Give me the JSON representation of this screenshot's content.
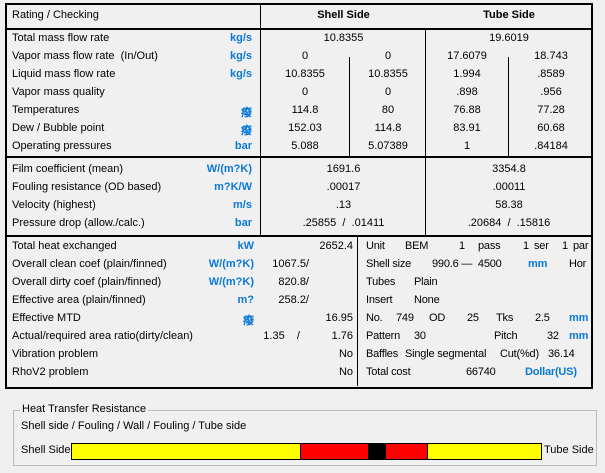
{
  "header": {
    "title": "Rating / Checking",
    "shell": "Shell Side",
    "tube": "Tube Side"
  },
  "rows1": [
    {
      "label": "Total mass flow rate",
      "unit": "kg/s",
      "shell": "10.8355",
      "tube": "19.6019"
    },
    {
      "label": "Vapor mass flow rate  (In/Out)",
      "unit": "kg/s",
      "s1": "0",
      "s2": "0",
      "t1": "17.6079",
      "t2": "18.743"
    },
    {
      "label": "Liquid mass flow rate",
      "unit": "kg/s",
      "s1": "10.8355",
      "s2": "10.8355",
      "t1": "1.994",
      "t2": ".8589"
    },
    {
      "label": "Vapor mass quality",
      "unit": "",
      "s1": "0",
      "s2": "0",
      "t1": ".898",
      "t2": ".956"
    },
    {
      "label": "Temperatures",
      "unit": "癈",
      "s1": "114.8",
      "s2": "80",
      "t1": "76.88",
      "t2": "77.28"
    },
    {
      "label": "Dew / Bubble point",
      "unit": "癈",
      "s1": "152.03",
      "s2": "114.8",
      "t1": "83.91",
      "t2": "60.68"
    },
    {
      "label": "Operating pressures",
      "unit": "bar",
      "s1": "5.088",
      "s2": "5.07389",
      "t1": "1",
      "t2": ".84184"
    }
  ],
  "rows2": [
    {
      "label": "Film coefficient (mean)",
      "unit": "W/(m?K)",
      "shell": "1691.6",
      "tube": "3354.8"
    },
    {
      "label": "Fouling resistance (OD based)",
      "unit": "m?K/W",
      "shell": ".00017",
      "tube": ".00011"
    },
    {
      "label": "Velocity (highest)",
      "unit": "m/s",
      "shell": ".13",
      "tube": "58.38"
    },
    {
      "label": "Pressure drop (allow./calc.)",
      "unit": "bar",
      "shell": ".25855  /  .01411",
      "tube": ".20684  /  .15816"
    }
  ],
  "rows3": [
    {
      "label": "Total heat exchanged",
      "unit": "kW",
      "v1": "",
      "v2": "2652.4"
    },
    {
      "label": "Overall clean coef (plain/finned)",
      "unit": "W/(m?K)",
      "v1": "1067.5/",
      "v2": ""
    },
    {
      "label": "Overall dirty coef (plain/finned)",
      "unit": "W/(m?K)",
      "v1": "820.8/",
      "v2": ""
    },
    {
      "label": "Effective area (plain/finned)",
      "unit": "m?",
      "v1": "258.2/",
      "v2": ""
    },
    {
      "label": "Effective MTD",
      "unit": "癈",
      "v1": "",
      "v2": "16.95"
    },
    {
      "label": "Actual/required area ratio(dirty/clean)",
      "unit": "",
      "v1": "1.35    /",
      "v2": "1.76"
    },
    {
      "label": "Vibration problem",
      "unit": "",
      "v1": "",
      "v2": "No"
    },
    {
      "label": "RhoV2 problem",
      "unit": "",
      "v1": "",
      "v2": "No"
    }
  ],
  "geometry": {
    "unit_label": "Unit",
    "unit_type": "BEM",
    "passes": "1",
    "pass_label": "pass",
    "ser": "1",
    "ser_label": "ser",
    "par": "1",
    "par_label": "par",
    "shell_size_label": "Shell size",
    "shell_size": "990.6 —  4500",
    "shell_size_unit": "mm",
    "orientation": "Hor",
    "tubes_label": "Tubes",
    "tubes": "Plain",
    "insert_label": "Insert",
    "insert": "None",
    "no_label": "No.",
    "no": "749",
    "od_label": "OD",
    "od": "25",
    "tks_label": "Tks",
    "tks": "2.5",
    "tube_unit": "mm",
    "pattern_label": "Pattern",
    "pattern": "30",
    "pitch_label": "Pitch",
    "pitch": "32",
    "pitch_unit": "mm",
    "baffles_label": "Baffles",
    "baffles": "Single segmental",
    "cut_label": "Cut(%d)",
    "cut": "36.14",
    "cost_label": "Total cost",
    "cost": "66740",
    "cost_unit": "Dollar(US)"
  },
  "resistance": {
    "title": "Heat Transfer Resistance",
    "subtitle": "Shell side / Fouling / Wall / Fouling / Tube side",
    "left_label": "Shell Side",
    "right_label": "Tube Side",
    "segments": [
      {
        "name": "shell-side",
        "percent": 48.7,
        "color": "#ffff00"
      },
      {
        "name": "shell-fouling",
        "percent": 14.5,
        "color": "#ff0000"
      },
      {
        "name": "wall",
        "percent": 3.6,
        "color": "#000000"
      },
      {
        "name": "tube-fouling",
        "percent": 8.9,
        "color": "#ff0000"
      },
      {
        "name": "tube-side",
        "percent": 24.3,
        "color": "#ffff00"
      }
    ]
  }
}
